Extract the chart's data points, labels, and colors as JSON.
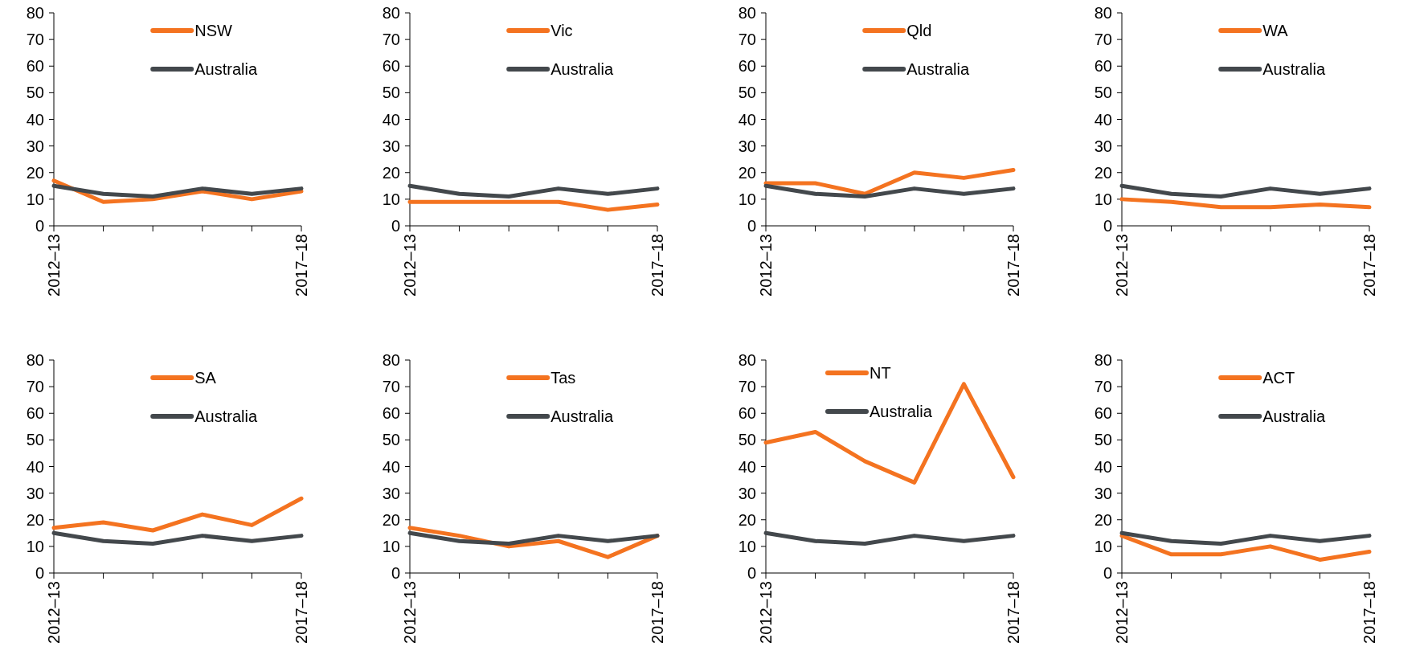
{
  "chart_data": [
    {
      "type": "line",
      "categories": [
        "2012–13",
        null,
        null,
        null,
        null,
        "2017–18"
      ],
      "ylim": [
        0,
        80
      ],
      "yticks": [
        0,
        10,
        20,
        30,
        40,
        50,
        60,
        70,
        80
      ],
      "legend": "top",
      "grid": false,
      "series": [
        {
          "name": "NSW",
          "color": "#f47320",
          "values": [
            17,
            9,
            10,
            13,
            10,
            13
          ]
        },
        {
          "name": "Australia",
          "color": "#43484c",
          "values": [
            15,
            12,
            11,
            14,
            12,
            14
          ]
        }
      ]
    },
    {
      "type": "line",
      "categories": [
        "2012–13",
        null,
        null,
        null,
        null,
        "2017–18"
      ],
      "ylim": [
        0,
        80
      ],
      "yticks": [
        0,
        10,
        20,
        30,
        40,
        50,
        60,
        70,
        80
      ],
      "legend": "top",
      "grid": false,
      "series": [
        {
          "name": "Vic",
          "color": "#f47320",
          "values": [
            9,
            9,
            9,
            9,
            6,
            8
          ]
        },
        {
          "name": "Australia",
          "color": "#43484c",
          "values": [
            15,
            12,
            11,
            14,
            12,
            14
          ]
        }
      ]
    },
    {
      "type": "line",
      "categories": [
        "2012–13",
        null,
        null,
        null,
        null,
        "2017–18"
      ],
      "ylim": [
        0,
        80
      ],
      "yticks": [
        0,
        10,
        20,
        30,
        40,
        50,
        60,
        70,
        80
      ],
      "legend": "top",
      "grid": false,
      "series": [
        {
          "name": "Qld",
          "color": "#f47320",
          "values": [
            16,
            16,
            12,
            20,
            18,
            21
          ]
        },
        {
          "name": "Australia",
          "color": "#43484c",
          "values": [
            15,
            12,
            11,
            14,
            12,
            14
          ]
        }
      ]
    },
    {
      "type": "line",
      "categories": [
        "2012–13",
        null,
        null,
        null,
        null,
        "2017–18"
      ],
      "ylim": [
        0,
        80
      ],
      "yticks": [
        0,
        10,
        20,
        30,
        40,
        50,
        60,
        70,
        80
      ],
      "legend": "top",
      "grid": false,
      "series": [
        {
          "name": "WA",
          "color": "#f47320",
          "values": [
            10,
            9,
            7,
            7,
            8,
            7
          ]
        },
        {
          "name": "Australia",
          "color": "#43484c",
          "values": [
            15,
            12,
            11,
            14,
            12,
            14
          ]
        }
      ]
    },
    {
      "type": "line",
      "categories": [
        "2012–13",
        null,
        null,
        null,
        null,
        "2017–18"
      ],
      "ylim": [
        0,
        80
      ],
      "yticks": [
        0,
        10,
        20,
        30,
        40,
        50,
        60,
        70,
        80
      ],
      "legend": "top",
      "grid": false,
      "series": [
        {
          "name": "SA",
          "color": "#f47320",
          "values": [
            17,
            19,
            16,
            22,
            18,
            28
          ]
        },
        {
          "name": "Australia",
          "color": "#43484c",
          "values": [
            15,
            12,
            11,
            14,
            12,
            14
          ]
        }
      ]
    },
    {
      "type": "line",
      "categories": [
        "2012–13",
        null,
        null,
        null,
        null,
        "2017–18"
      ],
      "ylim": [
        0,
        80
      ],
      "yticks": [
        0,
        10,
        20,
        30,
        40,
        50,
        60,
        70,
        80
      ],
      "legend": "top",
      "grid": false,
      "series": [
        {
          "name": "Tas",
          "color": "#f47320",
          "values": [
            17,
            14,
            10,
            12,
            6,
            14
          ]
        },
        {
          "name": "Australia",
          "color": "#43484c",
          "values": [
            15,
            12,
            11,
            14,
            12,
            14
          ]
        }
      ]
    },
    {
      "type": "line",
      "categories": [
        "2012–13",
        null,
        null,
        null,
        null,
        "2017–18"
      ],
      "ylim": [
        0,
        80
      ],
      "yticks": [
        0,
        10,
        20,
        30,
        40,
        50,
        60,
        70,
        80
      ],
      "legend": "top left",
      "grid": false,
      "series": [
        {
          "name": "NT",
          "color": "#f47320",
          "values": [
            49,
            53,
            42,
            34,
            71,
            36
          ]
        },
        {
          "name": "Australia",
          "color": "#43484c",
          "values": [
            15,
            12,
            11,
            14,
            12,
            14
          ]
        }
      ]
    },
    {
      "type": "line",
      "categories": [
        "2012–13",
        null,
        null,
        null,
        null,
        "2017–18"
      ],
      "ylim": [
        0,
        80
      ],
      "yticks": [
        0,
        10,
        20,
        30,
        40,
        50,
        60,
        70,
        80
      ],
      "legend": "top",
      "grid": false,
      "series": [
        {
          "name": "ACT",
          "color": "#f47320",
          "values": [
            14,
            7,
            7,
            10,
            5,
            8
          ]
        },
        {
          "name": "Australia",
          "color": "#43484c",
          "values": [
            15,
            12,
            11,
            14,
            12,
            14
          ]
        }
      ]
    }
  ]
}
